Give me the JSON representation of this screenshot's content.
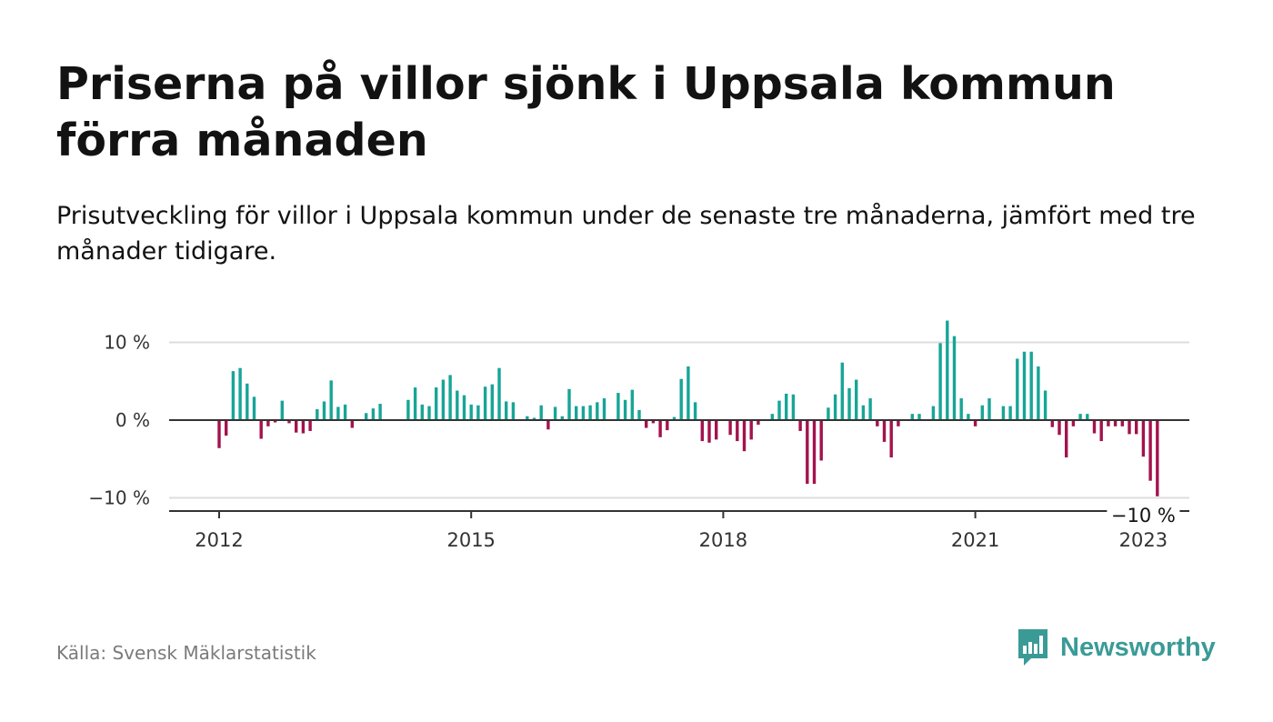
{
  "title": "Priserna på villor sjönk i Uppsala kommun förra månaden",
  "subtitle": "Prisutveckling för villor i Uppsala kommun under de senaste tre månaderna, jämfört med tre månader tidigare.",
  "source": "Källa: Svensk Mäklarstatistik",
  "brand": {
    "name": "Newsworthy",
    "icon": "newsworthy-logo-icon",
    "color": "#3a9b96"
  },
  "colors": {
    "positive": "#17a597",
    "negative": "#a3124d",
    "grid": "#dddddd",
    "zero_line": "#333333"
  },
  "chart_data": {
    "type": "bar",
    "title": "",
    "xlabel": "",
    "ylabel": "",
    "ylim": [
      -11.5,
      12.5
    ],
    "yticks": [
      {
        "value": 10,
        "label": "10 %"
      },
      {
        "value": 0,
        "label": "0 %"
      },
      {
        "value": -10,
        "label": "−10 %"
      }
    ],
    "xticks": [
      {
        "value": "2012-01",
        "label": "2012"
      },
      {
        "value": "2015-01",
        "label": "2015"
      },
      {
        "value": "2018-01",
        "label": "2018"
      },
      {
        "value": "2021-01",
        "label": "2021"
      },
      {
        "value": "2023-01",
        "label": "2023"
      }
    ],
    "annotation": {
      "text": "−10 %",
      "month": "2023-01"
    },
    "start": "2012-01",
    "values": [
      -3.6,
      -2.0,
      6.3,
      6.7,
      4.7,
      3.0,
      -2.4,
      -0.8,
      -0.3,
      2.5,
      -0.4,
      -1.6,
      -1.7,
      -1.4,
      1.4,
      2.4,
      5.1,
      1.7,
      2.0,
      -1.0,
      0.0,
      0.9,
      1.5,
      2.1,
      0.0,
      0.0,
      0.0,
      2.6,
      4.2,
      2.0,
      1.8,
      4.2,
      5.2,
      5.8,
      3.8,
      3.2,
      2.0,
      1.9,
      4.3,
      4.6,
      6.7,
      2.4,
      2.3,
      0.0,
      0.5,
      0.3,
      1.9,
      -1.2,
      1.7,
      0.5,
      4.0,
      1.8,
      1.8,
      1.9,
      2.3,
      2.8,
      0.0,
      3.5,
      2.6,
      3.9,
      1.3,
      -1.0,
      -0.4,
      -2.2,
      -1.3,
      0.4,
      5.3,
      6.9,
      2.3,
      -2.7,
      -2.9,
      -2.5,
      0.0,
      -1.9,
      -2.7,
      -4.0,
      -2.5,
      -0.6,
      0.0,
      0.8,
      2.5,
      3.4,
      3.3,
      -1.4,
      -8.2,
      -8.2,
      -5.2,
      1.6,
      3.3,
      7.4,
      4.1,
      5.2,
      1.9,
      2.8,
      -0.8,
      -2.8,
      -4.8,
      -0.8,
      0.0,
      0.8,
      0.8,
      0.0,
      1.8,
      9.9,
      12.8,
      10.8,
      2.8,
      0.8,
      -0.8,
      1.9,
      2.8,
      0.0,
      1.8,
      1.8,
      7.9,
      8.8,
      8.8,
      6.9,
      3.8,
      -0.9,
      -1.9,
      -4.8,
      -0.8,
      0.8,
      0.8,
      -1.7,
      -2.7,
      -0.8,
      -0.8,
      -0.8,
      -1.8,
      -1.8,
      -4.7,
      -7.8,
      -9.8
    ]
  }
}
